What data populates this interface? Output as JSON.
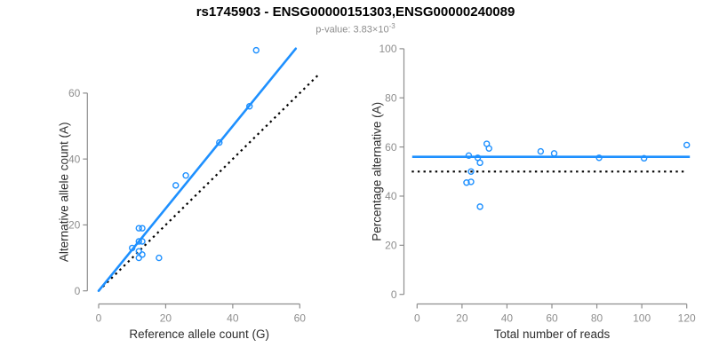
{
  "figure": {
    "title": "rs1745903 - ENSG00000151303,ENSG00000240089",
    "subtitle_prefix": "p-value: 3.83×10",
    "subtitle_exponent": "-3"
  },
  "colors": {
    "accent": "#1e90ff",
    "dotted": "#000000",
    "axis": "#8e8e8e",
    "tick_label": "#8e8e8e",
    "axis_title": "#2e2e2e",
    "title": "#000000",
    "subtitle": "#8e8e8e"
  },
  "chart_data": [
    {
      "type": "scatter",
      "name": "allele-counts",
      "xlabel": "Reference allele count (G)",
      "ylabel": "Alternative allele count (A)",
      "xlim": [
        0,
        60
      ],
      "ylim": [
        0,
        60
      ],
      "xticks": [
        0,
        20,
        40,
        60
      ],
      "yticks": [
        0,
        20,
        40,
        60
      ],
      "points": [
        [
          10,
          13
        ],
        [
          12,
          19
        ],
        [
          13,
          19
        ],
        [
          12,
          15
        ],
        [
          13,
          15
        ],
        [
          12,
          12
        ],
        [
          13,
          11
        ],
        [
          12,
          10
        ],
        [
          18,
          10
        ],
        [
          23,
          32
        ],
        [
          26,
          35
        ],
        [
          36,
          45
        ],
        [
          45,
          56
        ],
        [
          47,
          73
        ]
      ],
      "regression_line": {
        "intercept": 0,
        "slope": 1.25,
        "x_start": 0,
        "x_end": 58.8
      },
      "identity_line": {
        "style": "dotted",
        "from": [
          0,
          0
        ],
        "to": [
          65.3,
          65.3
        ]
      }
    },
    {
      "type": "scatter",
      "name": "percentage-alternative",
      "xlabel": "Total number of reads",
      "ylabel": "Percentage alternative (A)",
      "xlim": [
        0,
        120
      ],
      "ylim": [
        0,
        100
      ],
      "xticks": [
        0,
        20,
        40,
        60,
        80,
        100,
        120
      ],
      "yticks": [
        0,
        20,
        40,
        60,
        80,
        100
      ],
      "points": [
        [
          23,
          56.5
        ],
        [
          31,
          61.3
        ],
        [
          32,
          59.4
        ],
        [
          27,
          55.6
        ],
        [
          28,
          53.6
        ],
        [
          24,
          50.0
        ],
        [
          24,
          45.8
        ],
        [
          22,
          45.5
        ],
        [
          28,
          35.7
        ],
        [
          55,
          58.2
        ],
        [
          61,
          57.4
        ],
        [
          81,
          55.6
        ],
        [
          101,
          55.4
        ],
        [
          120,
          60.8
        ]
      ],
      "mean_line": {
        "y": 56
      },
      "reference_line": {
        "y": 50,
        "style": "dotted"
      }
    }
  ]
}
